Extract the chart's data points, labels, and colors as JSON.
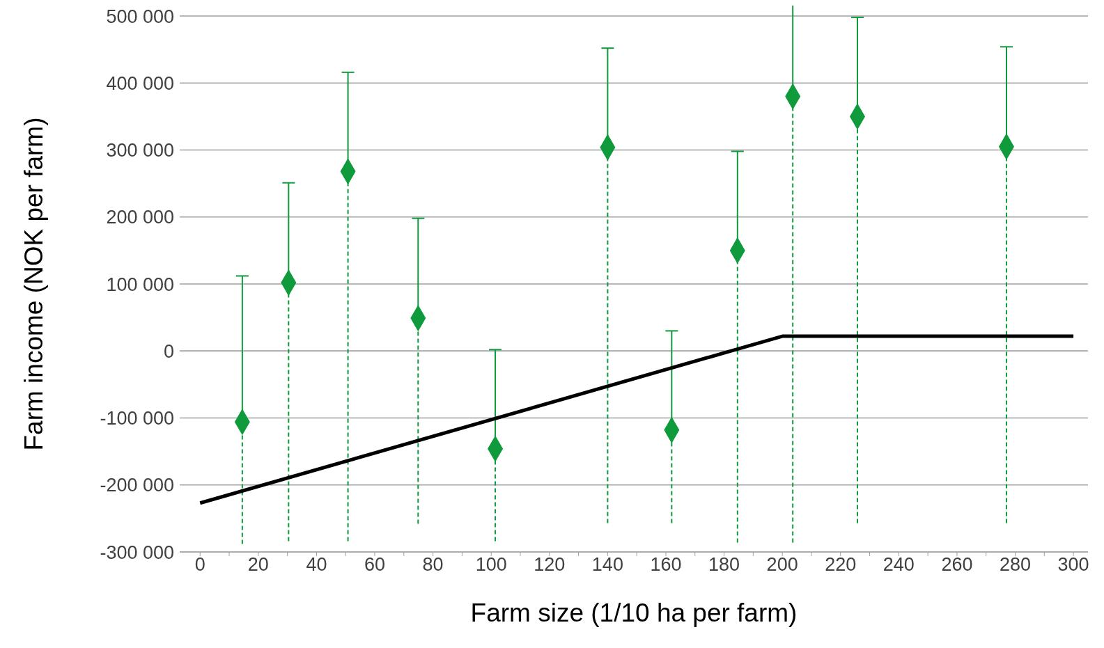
{
  "chart_data": {
    "type": "scatter",
    "xlabel": "Farm size (1/10 ha per farm)",
    "ylabel": "Farm income (NOK per farm)",
    "xlim": [
      -7,
      305
    ],
    "ylim": [
      -300000,
      500000
    ],
    "xticks": [
      0,
      {
        "value": 10,
        "label": null
      },
      20,
      {
        "value": 30,
        "label": null
      },
      40,
      {
        "value": 50,
        "label": null
      },
      60,
      {
        "value": 70,
        "label": null
      },
      80,
      {
        "value": 90,
        "label": null
      },
      100,
      {
        "value": 110,
        "label": null
      },
      120,
      {
        "value": 130,
        "label": null
      },
      140,
      {
        "value": 150,
        "label": null
      },
      160,
      {
        "value": 170,
        "label": null
      },
      180,
      {
        "value": 190,
        "label": null
      },
      200,
      {
        "value": 210,
        "label": null
      },
      220,
      {
        "value": 230,
        "label": null
      },
      240,
      {
        "value": 250,
        "label": null
      },
      260,
      {
        "value": 270,
        "label": null
      },
      280,
      {
        "value": 290,
        "label": null
      },
      300
    ],
    "yticks": [
      {
        "value": -300000,
        "label": "-300 000"
      },
      {
        "value": -200000,
        "label": "-200 000"
      },
      {
        "value": -100000,
        "label": "-100 000"
      },
      0,
      {
        "value": 100000,
        "label": "100 000"
      },
      {
        "value": 200000,
        "label": "200 000"
      },
      {
        "value": 300000,
        "label": "300 000"
      },
      {
        "value": 400000,
        "label": "400 000"
      },
      {
        "value": 500000,
        "label": "500 000"
      }
    ],
    "grid": "y",
    "legend": false,
    "series": [
      {
        "color": "#0f9a3c",
        "marker": "diamond",
        "x": [
          14.5,
          30.4,
          50.8,
          74.9,
          101.4,
          140,
          162,
          184.6,
          203.6,
          225.8,
          277
        ],
        "values": [
          -106000,
          102000,
          268000,
          49000,
          -146000,
          304000,
          -118000,
          150000,
          380000,
          350000,
          305000
        ],
        "errors": [
          [
            -288000,
            112000
          ],
          [
            -284000,
            251000
          ],
          [
            -284000,
            416000
          ],
          [
            -258000,
            198000
          ],
          [
            -284000,
            2000
          ],
          [
            -257000,
            452000
          ],
          [
            -257000,
            30000
          ],
          [
            -286000,
            298000
          ],
          [
            -286000,
            527000
          ],
          [
            -257000,
            498000
          ],
          [
            -257000,
            454000
          ]
        ]
      },
      {
        "type": "line",
        "color": "#000000",
        "marker": "none",
        "x": [
          0,
          200,
          300
        ],
        "values": [
          -227000,
          22000,
          22000
        ]
      }
    ]
  }
}
